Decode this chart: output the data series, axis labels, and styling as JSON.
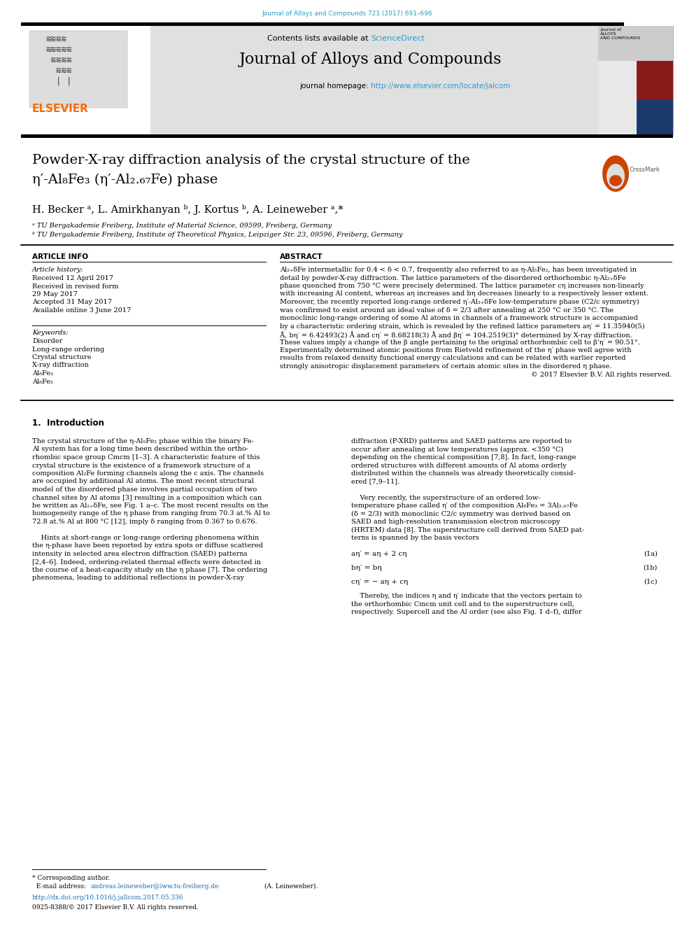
{
  "page_bg": "#ffffff",
  "top_journal_line": "Journal of Alloys and Compounds 721 (2017) 691–696",
  "top_journal_color": "#2b9ac8",
  "header_bg": "#e0e0e0",
  "header_sd_color": "#2b9ac8",
  "journal_title": "Journal of Alloys and Compounds",
  "journal_homepage_url": "http://www.elsevier.com/locate/jalcom",
  "journal_url_color": "#2b9ac8",
  "elsevier_color": "#ff6a00",
  "paper_title_line1": "Powder-X-ray diffraction analysis of the crystal structure of the",
  "paper_title_line2": "η′-Al₈Fe₃ (η′-Al₂.₆₇Fe) phase",
  "authors": "H. Becker ᵃ, L. Amirkhanyan ᵇ, J. Kortus ᵇ, A. Leineweber ᵃ,*",
  "affil_a": "ᵃ TU Bergakademie Freiberg, Institute of Material Science, 09599, Freiberg, Germany",
  "affil_b": "ᵇ TU Bergakademie Freiberg, Institute of Theoretical Physics, Leipziger Str. 23, 09596, Freiberg, Germany",
  "section_article_info": "ARTICLE INFO",
  "section_abstract": "ABSTRACT",
  "article_history_title": "Article history:",
  "keywords_title": "Keywords:",
  "kw_list": [
    "Disorder",
    "Long-range ordering",
    "Crystal structure",
    "X-ray diffraction",
    "Al₈Fe₃",
    "Al₈Fe₂"
  ],
  "abstract_lines": [
    "Al₂₊δFe intermetallic for 0.4 < δ < 0.7, frequently also referred to as η-Al₅Fe₂, has been investigated in",
    "detail by powder-X-ray diffraction. The lattice parameters of the disordered orthorhombic η-Al₂₊δFe",
    "phase quenched from 750 °C were precisely determined. The lattice parameter cη increases non-linearly",
    "with increasing Al content, whereas aη increases and bη decreases linearly to a respectively lesser extent.",
    "Moreover, the recently reported long-range ordered η′-Al₂₊δFe low-temperature phase (C2/c symmetry)",
    "was confirmed to exist around an ideal value of δ = 2/3 after annealing at 250 °C or 350 °C. The",
    "monoclinic long-range ordering of some Al atoms in channels of a framework structure is accompanied",
    "by a characteristic ordering strain, which is revealed by the refined lattice parameters aη′ = 11.35940(5)",
    "Å, bη′ = 6.42493(2) Å and cη′ = 8.68218(3) Å and βη′ = 104.2519(3)° determined by X-ray diffraction.",
    "These values imply a change of the β angle pertaining to the original orthorhombic cell to β’η′ = 90.51°.",
    "Experimentally determined atomic positions from Rietveld refinement of the η′ phase well agree with",
    "results from relaxed density functional energy calculations and can be related with earlier reported",
    "strongly anisotropic displacement parameters of certain atomic sites in the disordered η phase."
  ],
  "copyright_line": "© 2017 Elsevier B.V. All rights reserved.",
  "intro_section": "1.  Introduction",
  "intro_left": [
    "The crystal structure of the η-Al₅Fe₂ phase within the binary Fe-",
    "Al system has for a long time been described within the ortho-",
    "rhombic space group Cmcm [1–3]. A characteristic feature of this",
    "crystal structure is the existence of a framework structure of a",
    "composition Al₂Fe forming channels along the c axis. The channels",
    "are occupied by additional Al atoms. The most recent structural",
    "model of the disordered phase involves partial occupation of two",
    "channel sites by Al atoms [3] resulting in a composition which can",
    "be written as Al₂₊δFe, see Fig. 1 a–c. The most recent results on the",
    "homogeneity range of the η phase from ranging from 70.3 at.% Al to",
    "72.8 at.% Al at 800 °C [12], imply δ ranging from 0.367 to 0.676.",
    "",
    "    Hints at short-range or long-range ordering phenomena within",
    "the η-phase have been reported by extra spots or diffuse scattered",
    "intensity in selected area electron diffraction (SAED) patterns",
    "[2,4–6]. Indeed, ordering-related thermal effects were detected in",
    "the course of a heat-capacity study on the η phase [7]. The ordering",
    "phenomena, leading to additional reflections in powder-X-ray"
  ],
  "intro_right": [
    "diffraction (P-XRD) patterns and SAED patterns are reported to",
    "occur after annealing at low temperatures (approx. <350 °C)",
    "depending on the chemical composition [7,8]. In fact, long-range",
    "ordered structures with different amounts of Al atoms orderly",
    "distributed within the channels was already theoretically consid-",
    "ered [7,9–11].",
    "",
    "    Very recently, the superstructure of an ordered low-",
    "temperature phase called η′ of the composition Al₈Fe₃ = 3Al₂.₆₇Fe",
    "(δ = 2/3) with monoclinic C2/c symmetry was derived based on",
    "SAED and high-resolution transmission electron microscopy",
    "(HRTEM) data [8]. The superstructure cell derived from SAED pat-",
    "terns is spanned by the basis vectors"
  ],
  "eq1a": "aη′ = aη + 2 cη",
  "eq1b": "bη′ = bη",
  "eq1c": "cη′ = − aη + cη",
  "eq_label_1a": "(1a)",
  "eq_label_1b": "(1b)",
  "eq_label_1c": "(1c)",
  "after_eq": [
    "    Thereby, the indices η and η′ indicate that the vectors pertain to",
    "the orthorhombic Cmcm unit cell and to the superstructure cell,",
    "respectively. Supercell and the Al order (see also Fig. 1 d–f), differ"
  ],
  "footer_star": "* Corresponding author.",
  "footer_email_prefix": "  E-mail address: ",
  "footer_email": "andreas.leineweber@iww.tu-freiberg.de",
  "footer_email_suffix": " (A. Leineweber).",
  "footer_doi": "http://dx.doi.org/10.1016/j.jallcom.2017.05.336",
  "footer_issn": "0925-8388/© 2017 Elsevier B.V. All rights reserved.",
  "link_color": "#1a6eb5"
}
